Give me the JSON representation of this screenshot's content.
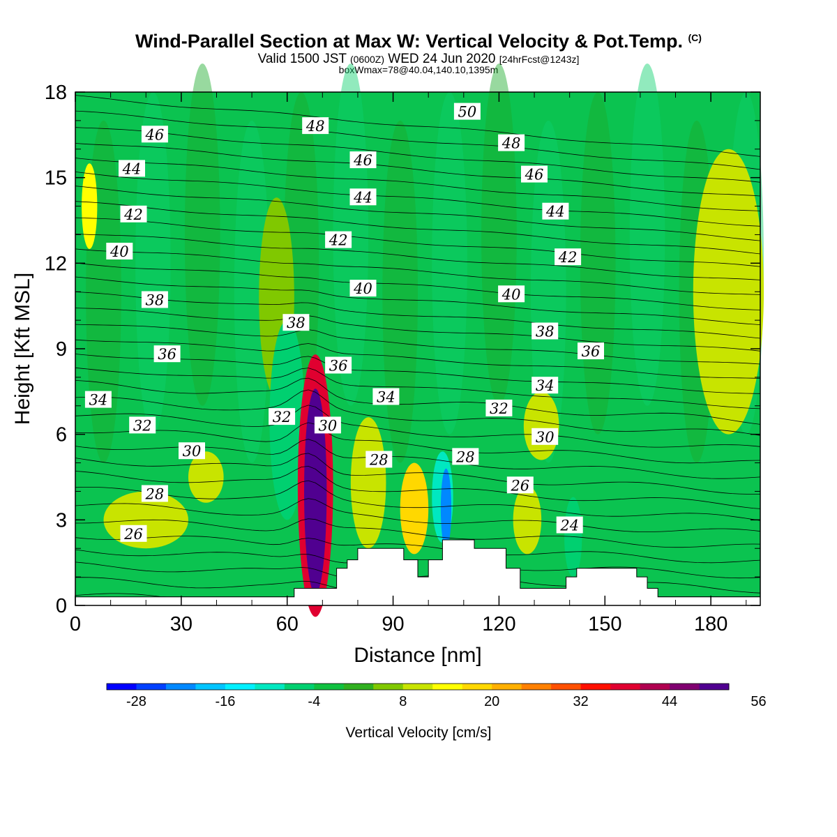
{
  "header": {
    "title": "Wind-Parallel Section at Max W: Vertical Velocity & Pot.Temp.",
    "copyright": "(C)",
    "valid_time": "Valid 1500 JST",
    "utc_time": "(0600Z)",
    "date": "WED 24 Jun 2020",
    "forecast": "[24hrFcst@1243z]",
    "box_info": "boxWmax=78@40.04,140.10,1395m"
  },
  "colors": {
    "frame": "#000000",
    "background": "#ffffff",
    "base_field": "#0bc350",
    "field_light": "#0ad16c",
    "field_dark": "#1aaa2a"
  },
  "chart_data": {
    "type": "contour",
    "xlabel": "Distance [nm]",
    "ylabel": "Height [Kft MSL]",
    "xlim": [
      0,
      194
    ],
    "ylim": [
      0,
      18
    ],
    "xticks": [
      0,
      30,
      60,
      90,
      120,
      150,
      180
    ],
    "yticks": [
      0,
      3,
      6,
      9,
      12,
      15,
      18
    ],
    "colorbar": {
      "label": "Vertical Velocity [cm/s]",
      "ticks": [
        -28,
        -16,
        -4,
        8,
        20,
        32,
        44,
        56
      ],
      "min": -32,
      "step": 4,
      "colors": [
        "#0000ff",
        "#0040ff",
        "#0088ff",
        "#00c4ff",
        "#00f0ff",
        "#00e8c0",
        "#00d070",
        "#10c040",
        "#30b020",
        "#80c800",
        "#c8e400",
        "#ffff00",
        "#ffd800",
        "#ffb000",
        "#ff8000",
        "#ff5000",
        "#ff1000",
        "#e00030",
        "#b00050",
        "#800070",
        "#500090"
      ]
    },
    "terrain": [
      [
        0,
        0.3
      ],
      [
        62,
        0.3
      ],
      [
        62,
        0.6
      ],
      [
        68,
        0.6
      ],
      [
        68,
        0.6
      ],
      [
        74,
        0.6
      ],
      [
        74,
        1.3
      ],
      [
        77,
        1.3
      ],
      [
        77,
        1.6
      ],
      [
        80,
        1.6
      ],
      [
        80,
        2.0
      ],
      [
        93,
        2.0
      ],
      [
        93,
        1.6
      ],
      [
        97,
        1.6
      ],
      [
        97,
        1.0
      ],
      [
        100,
        1.0
      ],
      [
        100,
        1.6
      ],
      [
        104,
        1.6
      ],
      [
        104,
        2.3
      ],
      [
        113,
        2.3
      ],
      [
        113,
        2.0
      ],
      [
        122,
        2.0
      ],
      [
        122,
        1.3
      ],
      [
        126,
        1.3
      ],
      [
        126,
        0.6
      ],
      [
        139,
        0.6
      ],
      [
        139,
        1.0
      ],
      [
        142,
        1.0
      ],
      [
        142,
        1.3
      ],
      [
        159,
        1.3
      ],
      [
        159,
        1.0
      ],
      [
        162,
        1.0
      ],
      [
        162,
        0.6
      ],
      [
        165,
        0.6
      ],
      [
        165,
        0.3
      ],
      [
        194,
        0.3
      ]
    ],
    "theta_labels": [
      {
        "text": "50",
        "x": 111,
        "y": 17.3
      },
      {
        "text": "48",
        "x": 68,
        "y": 16.8
      },
      {
        "text": "48",
        "x": 123.5,
        "y": 16.2
      },
      {
        "text": "46",
        "x": 22.5,
        "y": 16.5
      },
      {
        "text": "46",
        "x": 81.5,
        "y": 15.6
      },
      {
        "text": "46",
        "x": 130,
        "y": 15.1
      },
      {
        "text": "44",
        "x": 16,
        "y": 15.3
      },
      {
        "text": "44",
        "x": 81.5,
        "y": 14.3
      },
      {
        "text": "44",
        "x": 136,
        "y": 13.8
      },
      {
        "text": "42",
        "x": 16.5,
        "y": 13.7
      },
      {
        "text": "42",
        "x": 74.5,
        "y": 12.8
      },
      {
        "text": "42",
        "x": 139.5,
        "y": 12.2
      },
      {
        "text": "40",
        "x": 12.5,
        "y": 12.4
      },
      {
        "text": "40",
        "x": 81.5,
        "y": 11.1
      },
      {
        "text": "40",
        "x": 123.5,
        "y": 10.9
      },
      {
        "text": "38",
        "x": 22.5,
        "y": 10.7
      },
      {
        "text": "38",
        "x": 62.5,
        "y": 9.9
      },
      {
        "text": "38",
        "x": 133,
        "y": 9.6
      },
      {
        "text": "36",
        "x": 26,
        "y": 8.8
      },
      {
        "text": "36",
        "x": 74.5,
        "y": 8.4
      },
      {
        "text": "36",
        "x": 146,
        "y": 8.9
      },
      {
        "text": "34",
        "x": 6.5,
        "y": 7.2
      },
      {
        "text": "34",
        "x": 88,
        "y": 7.3
      },
      {
        "text": "34",
        "x": 133,
        "y": 7.7
      },
      {
        "text": "32",
        "x": 19,
        "y": 6.3
      },
      {
        "text": "32",
        "x": 58.5,
        "y": 6.6
      },
      {
        "text": "32",
        "x": 120,
        "y": 6.9
      },
      {
        "text": "30",
        "x": 33,
        "y": 5.4
      },
      {
        "text": "30",
        "x": 71.5,
        "y": 6.3
      },
      {
        "text": "30",
        "x": 133,
        "y": 5.9
      },
      {
        "text": "28",
        "x": 22.5,
        "y": 3.9
      },
      {
        "text": "28",
        "x": 86,
        "y": 5.1
      },
      {
        "text": "28",
        "x": 110.5,
        "y": 5.2
      },
      {
        "text": "26",
        "x": 16.5,
        "y": 2.5
      },
      {
        "text": "26",
        "x": 126,
        "y": 4.2
      },
      {
        "text": "24",
        "x": 140,
        "y": 2.8
      }
    ],
    "vv_features": [
      {
        "value": 4,
        "x": 57,
        "y": 10.8,
        "rx": 5,
        "ry": 3.5
      },
      {
        "value": -8,
        "x": 60,
        "y": 6.5,
        "rx": 5,
        "ry": 3.5
      },
      {
        "value": 8,
        "x": 37,
        "y": 4.5,
        "rx": 5,
        "ry": 0.9
      },
      {
        "value": 8,
        "x": 20,
        "y": 3.0,
        "rx": 12,
        "ry": 1.0
      },
      {
        "value": 8,
        "x": 83,
        "y": 4.3,
        "rx": 5,
        "ry": 2.3
      },
      {
        "value": 16,
        "x": 96,
        "y": 3.4,
        "rx": 4,
        "ry": 1.6
      },
      {
        "value": -12,
        "x": 104,
        "y": 3.8,
        "rx": 3,
        "ry": 1.6
      },
      {
        "value": -24,
        "x": 105,
        "y": 3.4,
        "rx": 1.5,
        "ry": 1.4
      },
      {
        "value": -8,
        "x": 141,
        "y": 2.4,
        "rx": 2.5,
        "ry": 1.4
      },
      {
        "value": 8,
        "x": 128,
        "y": 3.0,
        "rx": 4,
        "ry": 1.2
      },
      {
        "value": 8,
        "x": 132,
        "y": 6.3,
        "rx": 5,
        "ry": 1.2
      },
      {
        "value": 8,
        "x": 185,
        "y": 11.0,
        "rx": 10,
        "ry": 5
      },
      {
        "value": 12,
        "x": 4,
        "y": 14.0,
        "rx": 2.2,
        "ry": 1.5
      },
      {
        "value": 36,
        "x": 68,
        "y": 4.2,
        "rx": 5,
        "ry": 4.6
      },
      {
        "value": 48,
        "x": 68,
        "y": 4.0,
        "rx": 3.2,
        "ry": 3.6
      },
      {
        "value": 60,
        "x": 68,
        "y": 3.8,
        "rx": 1.5,
        "ry": 2.2
      }
    ]
  }
}
